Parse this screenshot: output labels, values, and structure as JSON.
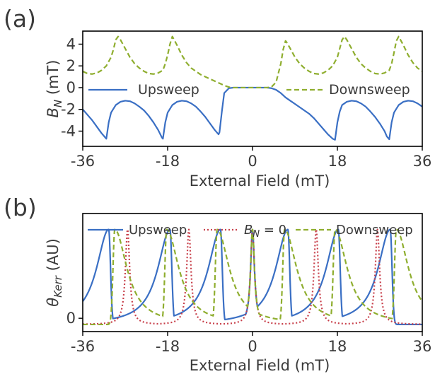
{
  "chart_data": [
    {
      "panel_label": "(a)",
      "type": "line",
      "xlabel": "External Field (mT)",
      "ylabel_main": "B",
      "ylabel_sub": "N",
      "ylabel_unit": " (mT)",
      "xlim": [
        -36,
        36
      ],
      "ylim": [
        -5.4,
        5.2
      ],
      "xticks": [
        -36,
        -18,
        0,
        18,
        36
      ],
      "xtick_labels": [
        "-36",
        "-18",
        "0",
        "18",
        "36"
      ],
      "yticks": [
        4,
        2,
        0,
        -2,
        -4
      ],
      "ytick_labels": [
        "4",
        "2",
        "0",
        "-2",
        "-4"
      ],
      "legend": {
        "placement": "inside-middle",
        "entries": [
          "Upsweep",
          "Downsweep"
        ]
      },
      "series": [
        {
          "name": "Upsweep",
          "color": "#3a6fc4",
          "style": "solid",
          "x": [
            -36,
            -34,
            -32,
            -31,
            -30.5,
            -30,
            -29,
            -28,
            -27,
            -26,
            -25,
            -24,
            -23,
            -22,
            -21,
            -20,
            -19.2,
            -19,
            -18.5,
            -18,
            -17,
            -16,
            -15,
            -14,
            -13,
            -12,
            -11,
            -10,
            -9,
            -8,
            -7.2,
            -7,
            -6.5,
            -6,
            -5,
            -4,
            -3,
            -2,
            -1,
            0,
            1,
            2,
            3,
            4,
            5,
            6,
            7,
            8,
            9,
            10,
            11,
            12,
            13,
            14,
            15,
            16,
            17,
            17.5,
            18,
            18.5,
            19,
            20,
            21,
            22,
            23,
            24,
            25,
            26,
            27,
            28,
            28.5,
            29,
            29.5,
            30,
            31,
            32,
            33,
            34,
            35,
            36
          ],
          "y": [
            -2.0,
            -3.0,
            -4.2,
            -4.7,
            -3.2,
            -2.3,
            -1.6,
            -1.3,
            -1.2,
            -1.25,
            -1.45,
            -1.75,
            -2.1,
            -2.6,
            -3.2,
            -3.9,
            -4.6,
            -4.7,
            -3.2,
            -2.3,
            -1.6,
            -1.3,
            -1.2,
            -1.25,
            -1.45,
            -1.75,
            -2.2,
            -2.7,
            -3.3,
            -3.9,
            -4.3,
            -4.1,
            -2.2,
            -0.5,
            -0.05,
            0,
            0,
            0,
            0,
            0,
            0,
            0,
            0,
            -0.05,
            -0.2,
            -0.5,
            -0.9,
            -1.2,
            -1.5,
            -1.8,
            -2.1,
            -2.4,
            -2.8,
            -3.3,
            -3.8,
            -4.3,
            -4.7,
            -4.8,
            -3.2,
            -2.2,
            -1.6,
            -1.3,
            -1.2,
            -1.25,
            -1.45,
            -1.75,
            -2.2,
            -2.7,
            -3.3,
            -4.0,
            -4.5,
            -4.75,
            -3.2,
            -2.3,
            -1.6,
            -1.3,
            -1.2,
            -1.25,
            -1.45,
            -1.75
          ]
        },
        {
          "name": "Downsweep",
          "color": "#8fae2f",
          "style": "dashed",
          "x": [
            -36,
            -35,
            -34,
            -33,
            -32,
            -31,
            -30,
            -29.5,
            -29,
            -28.5,
            -28,
            -27,
            -26,
            -25,
            -24,
            -23,
            -22,
            -21,
            -20,
            -19,
            -18.5,
            -18,
            -17.5,
            -17,
            -16,
            -15,
            -14,
            -13,
            -12,
            -11,
            -10,
            -9,
            -8,
            -7,
            -6,
            -5,
            -4,
            -3,
            -2,
            -1,
            0,
            1,
            2,
            3,
            4,
            5,
            6,
            6.5,
            7,
            7.2,
            8,
            9,
            10,
            11,
            12,
            13,
            14,
            15,
            16,
            17,
            18,
            18.5,
            19,
            19.5,
            20,
            21,
            22,
            23,
            24,
            25,
            26,
            27,
            28,
            29,
            29.5,
            30,
            30.5,
            31,
            32,
            33,
            34,
            35,
            36
          ],
          "y": [
            1.5,
            1.3,
            1.25,
            1.35,
            1.6,
            2.0,
            2.8,
            3.5,
            4.4,
            4.7,
            4.4,
            3.6,
            2.8,
            2.2,
            1.8,
            1.5,
            1.3,
            1.25,
            1.35,
            1.6,
            2.2,
            3.0,
            4.0,
            4.7,
            3.9,
            3.0,
            2.3,
            1.8,
            1.5,
            1.2,
            1.0,
            0.8,
            0.6,
            0.4,
            0.2,
            0.05,
            0,
            0,
            0,
            0,
            0,
            0,
            0,
            0,
            0.05,
            0.5,
            2.2,
            3.5,
            4.3,
            4.2,
            3.6,
            2.8,
            2.2,
            1.8,
            1.5,
            1.3,
            1.25,
            1.35,
            1.6,
            2.0,
            2.8,
            3.6,
            4.4,
            4.7,
            4.4,
            3.6,
            2.8,
            2.2,
            1.8,
            1.5,
            1.3,
            1.25,
            1.35,
            1.6,
            2.2,
            3.2,
            4.3,
            4.7,
            3.9,
            3.0,
            2.3,
            1.8,
            1.5
          ]
        }
      ]
    },
    {
      "panel_label": "(b)",
      "type": "line",
      "xlabel": "External Field (mT)",
      "ylabel_main": "θ",
      "ylabel_sub": "Kerr",
      "ylabel_unit": " (AU)",
      "xlim": [
        -36,
        36
      ],
      "ylim": [
        -0.15,
        1.18
      ],
      "xticks": [
        -36,
        -18,
        0,
        18,
        36
      ],
      "xtick_labels": [
        "-36",
        "-18",
        "0",
        "18",
        "36"
      ],
      "yticks": [
        0
      ],
      "ytick_labels": [
        "0"
      ],
      "legend": {
        "placement": "top",
        "entries": [
          "Upsweep",
          "B_N = 0",
          "Downsweep"
        ],
        "bn_label_main": "B",
        "bn_label_sub": "N",
        "bn_label_rest": " = 0"
      },
      "series": [
        {
          "name": "Upsweep",
          "color": "#3a6fc4",
          "style": "solid",
          "peaks": [
            -30.5,
            -17.5,
            -6.8,
            0,
            7.5,
            18.2,
            29.2
          ],
          "widths": [
            1.2,
            1.2,
            1.2,
            0.5,
            1.2,
            1.2,
            1.2
          ],
          "kind": "asym-up"
        },
        {
          "name": "B_N = 0",
          "color": "#c8404b",
          "style": "dotted",
          "peaks": [
            -26.5,
            -13.5,
            0,
            13.5,
            26.5
          ],
          "widths": [
            0.55,
            0.55,
            0.5,
            0.55,
            0.55
          ],
          "kind": "lorentz"
        },
        {
          "name": "Downsweep",
          "color": "#8fae2f",
          "style": "dashed",
          "peaks": [
            -29.2,
            -18.2,
            -7.5,
            0,
            6.8,
            17.5,
            30.5
          ],
          "widths": [
            1.2,
            1.2,
            1.2,
            0.5,
            1.2,
            1.2,
            1.2
          ],
          "kind": "asym-down"
        }
      ],
      "peak_height": 1.0,
      "baseline": -0.07
    }
  ]
}
